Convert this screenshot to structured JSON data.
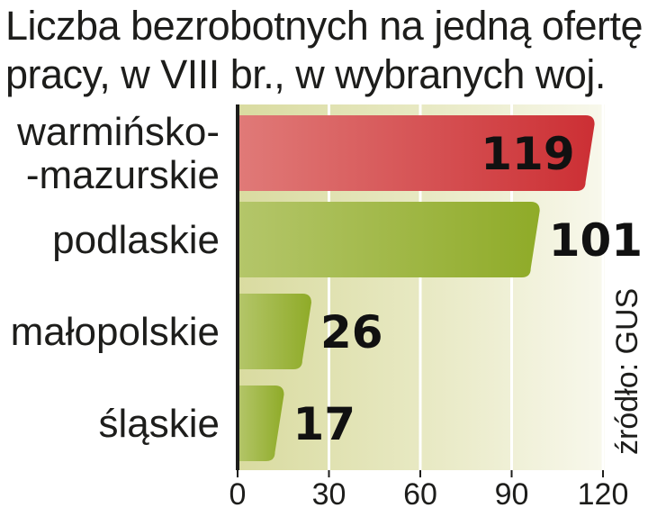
{
  "title": {
    "line1": "Liczba bezrobotnych na jedną ofertę",
    "line2": "pracy, w VIII br., w wybranych woj."
  },
  "source": "źródło: GUS",
  "colors": {
    "highlight_bar": "#d43a3e",
    "bar": "#98b232",
    "background_band": "#e5e6b8",
    "grid": "#ffffff",
    "axis": "#1d1d1b"
  },
  "chart_data": {
    "type": "bar",
    "orientation": "horizontal",
    "title": "Liczba bezrobotnych na jedną ofertę pracy, w VIII br., w wybranych woj.",
    "categories": [
      [
        "warmińsko-",
        "-mazurskie"
      ],
      [
        "podlaskie"
      ],
      [
        "małopolskie"
      ],
      [
        "śląskie"
      ]
    ],
    "values": [
      119,
      101,
      26,
      17
    ],
    "value_labels": [
      "119",
      "101",
      "26",
      "17"
    ],
    "highlight_index": 0,
    "xlim": [
      0,
      120
    ],
    "xticks": [
      0,
      30,
      60,
      90,
      120
    ],
    "grid": true,
    "source": "źródło: GUS"
  }
}
